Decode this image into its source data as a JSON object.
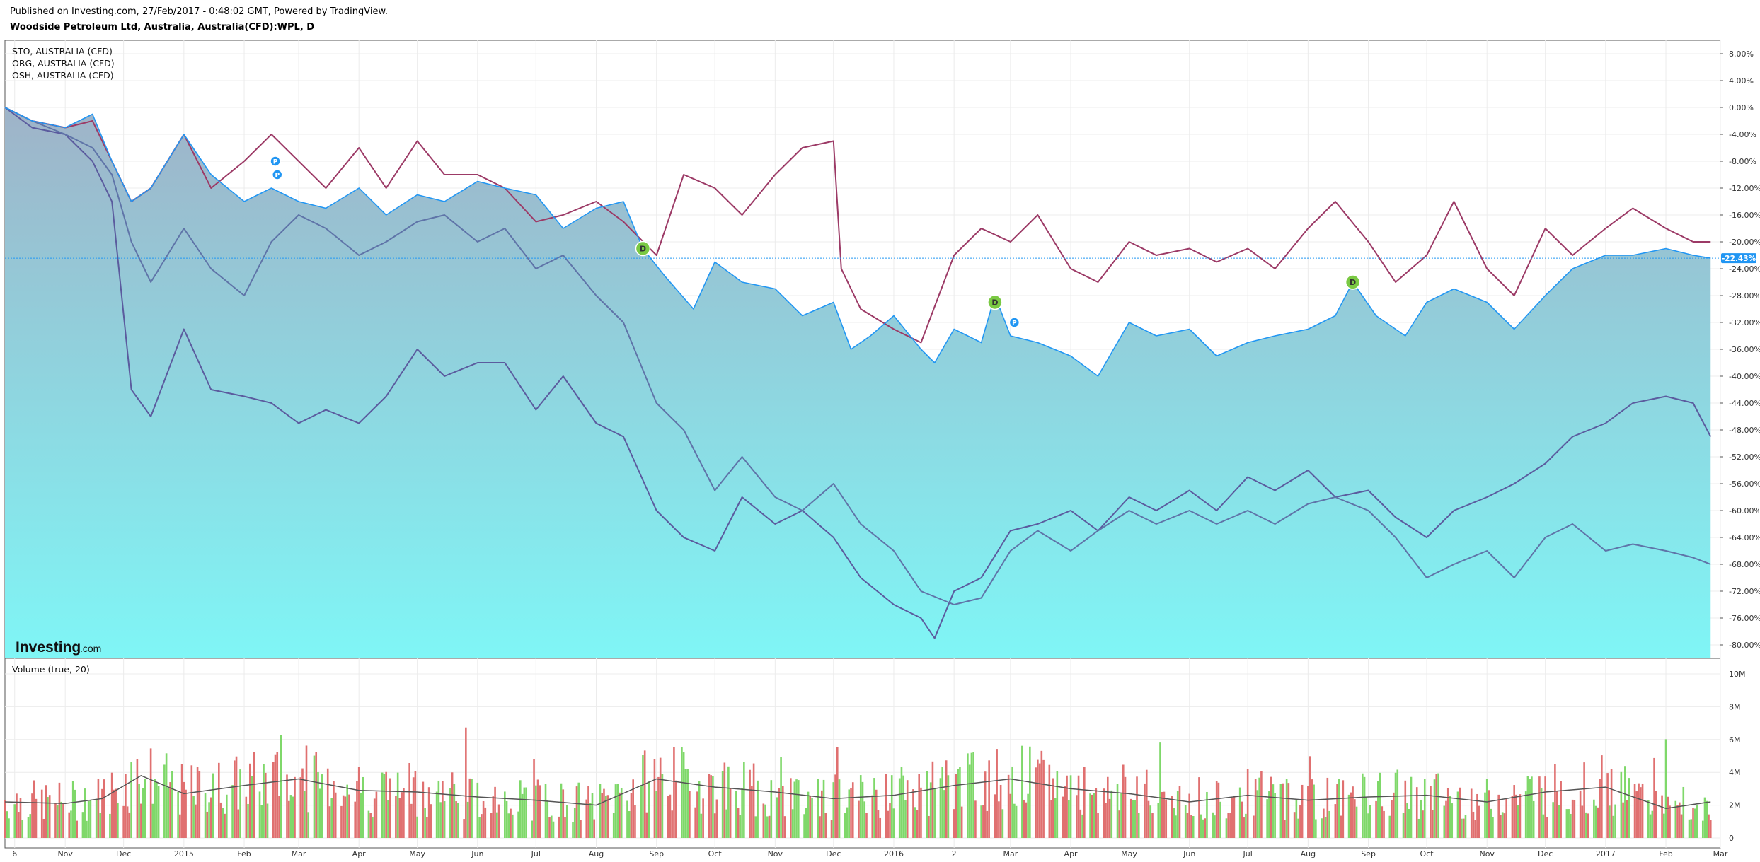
{
  "header": {
    "published": "Published on Investing.com, 27/Feb/2017 - 0:48:02 GMT, Powered by TradingView.",
    "title": "Woodside Petroleum Ltd, Australia, Australia(CFD):WPL, D"
  },
  "legend": [
    "STO, AUSTRALIA (CFD)",
    "ORG, AUSTRALIA (CFD)",
    "OSH, AUSTRALIA (CFD)"
  ],
  "volume_label": "Volume (true, 20)",
  "watermark": {
    "brand": "Investing",
    "suffix": ".com"
  },
  "last_value_tag": "-22.43%",
  "markers": [
    {
      "letter": "P",
      "type": "P",
      "x": "2015-02-17",
      "y": -8
    },
    {
      "letter": "P",
      "type": "P",
      "x": "2015-02-18",
      "y": -10
    },
    {
      "letter": "D",
      "type": "D",
      "x": "2015-08-25",
      "y": -21
    },
    {
      "letter": "D",
      "type": "D",
      "x": "2016-02-22",
      "y": -29
    },
    {
      "letter": "P",
      "type": "P",
      "x": "2016-03-03",
      "y": -32
    },
    {
      "letter": "D",
      "type": "D",
      "x": "2016-08-24",
      "y": -26
    }
  ],
  "colors": {
    "main_line": "#2196f3",
    "area_top": "#9fb3c8",
    "area_bottom": "#7ff6f6",
    "sto": "#5b5b9e",
    "org": "#9c3a66",
    "osh": "#5f74a8",
    "vol_up": "#7fd86a",
    "vol_down": "#e07070",
    "vol_ma": "#555555",
    "tag_bg": "#2196f3",
    "marker_d": "#7ac943",
    "marker_p": "#2196f3"
  },
  "chart_data": [
    {
      "type": "area",
      "name": "Woodside Petroleum Ltd, Australia, Australia(CFD):WPL, D",
      "y_unit": "%",
      "y_ticks": [
        "8.00%",
        "4.00%",
        "0.00%",
        "-4.00%",
        "-8.00%",
        "-12.00%",
        "-16.00%",
        "-20.00%",
        "-24.00%",
        "-28.00%",
        "-32.00%",
        "-36.00%",
        "-40.00%",
        "-44.00%",
        "-48.00%",
        "-52.00%",
        "-56.00%",
        "-60.00%",
        "-64.00%",
        "-68.00%",
        "-72.00%",
        "-76.00%",
        "-80.00%"
      ],
      "ylim": [
        -82,
        10
      ],
      "x_ticks": [
        {
          "label": "6",
          "date": "2014-10-06"
        },
        {
          "label": "Nov",
          "date": "2014-11-01"
        },
        {
          "label": "Dec",
          "date": "2014-12-01"
        },
        {
          "label": "2015",
          "date": "2015-01-01"
        },
        {
          "label": "Feb",
          "date": "2015-02-01"
        },
        {
          "label": "Mar",
          "date": "2015-03-01"
        },
        {
          "label": "Apr",
          "date": "2015-04-01"
        },
        {
          "label": "May",
          "date": "2015-05-01"
        },
        {
          "label": "Jun",
          "date": "2015-06-01"
        },
        {
          "label": "Jul",
          "date": "2015-07-01"
        },
        {
          "label": "Aug",
          "date": "2015-08-01"
        },
        {
          "label": "Sep",
          "date": "2015-09-01"
        },
        {
          "label": "Oct",
          "date": "2015-10-01"
        },
        {
          "label": "Nov",
          "date": "2015-11-01"
        },
        {
          "label": "Dec",
          "date": "2015-12-01"
        },
        {
          "label": "2016",
          "date": "2016-01-01"
        },
        {
          "label": "2",
          "date": "2016-02-01"
        },
        {
          "label": "Mar",
          "date": "2016-03-01"
        },
        {
          "label": "Apr",
          "date": "2016-04-01"
        },
        {
          "label": "May",
          "date": "2016-05-01"
        },
        {
          "label": "Jun",
          "date": "2016-06-01"
        },
        {
          "label": "Jul",
          "date": "2016-07-01"
        },
        {
          "label": "Aug",
          "date": "2016-08-01"
        },
        {
          "label": "Sep",
          "date": "2016-09-01"
        },
        {
          "label": "Oct",
          "date": "2016-10-01"
        },
        {
          "label": "Nov",
          "date": "2016-11-01"
        },
        {
          "label": "Dec",
          "date": "2016-12-01"
        },
        {
          "label": "2017",
          "date": "2017-01-01"
        },
        {
          "label": "Feb",
          "date": "2017-02-01"
        },
        {
          "label": "Mar",
          "date": "2017-03-01"
        }
      ],
      "xlim": [
        "2014-10-01",
        "2017-03-01"
      ],
      "grid": true,
      "legend_position": "top-left",
      "series": [
        {
          "name": "Woodside Petroleum Ltd, Australia, Australia(CFD):WPL, D",
          "x": [
            "2014-10-01",
            "2014-10-15",
            "2014-11-01",
            "2014-11-15",
            "2014-11-25",
            "2014-12-05",
            "2014-12-15",
            "2015-01-01",
            "2015-01-15",
            "2015-02-01",
            "2015-02-15",
            "2015-03-01",
            "2015-03-15",
            "2015-04-01",
            "2015-04-15",
            "2015-05-01",
            "2015-05-15",
            "2015-06-01",
            "2015-06-15",
            "2015-07-01",
            "2015-07-15",
            "2015-08-01",
            "2015-08-15",
            "2015-08-25",
            "2015-09-05",
            "2015-09-20",
            "2015-10-01",
            "2015-10-15",
            "2015-11-01",
            "2015-11-15",
            "2015-12-01",
            "2015-12-10",
            "2015-12-20",
            "2016-01-01",
            "2016-01-15",
            "2016-01-22",
            "2016-02-01",
            "2016-02-15",
            "2016-02-22",
            "2016-03-01",
            "2016-03-15",
            "2016-04-01",
            "2016-04-15",
            "2016-05-01",
            "2016-05-15",
            "2016-06-01",
            "2016-06-15",
            "2016-07-01",
            "2016-07-15",
            "2016-08-01",
            "2016-08-15",
            "2016-08-24",
            "2016-09-05",
            "2016-09-20",
            "2016-10-01",
            "2016-10-15",
            "2016-11-01",
            "2016-11-15",
            "2016-12-01",
            "2016-12-15",
            "2017-01-01",
            "2017-01-15",
            "2017-02-01",
            "2017-02-15",
            "2017-02-24"
          ],
          "y": [
            0,
            -2,
            -3,
            -1,
            -8,
            -14,
            -12,
            -4,
            -10,
            -14,
            -12,
            -14,
            -15,
            -12,
            -16,
            -13,
            -14,
            -11,
            -12,
            -13,
            -18,
            -15,
            -14,
            -21,
            -25,
            -30,
            -23,
            -26,
            -27,
            -31,
            -29,
            -36,
            -34,
            -31,
            -36,
            -38,
            -33,
            -35,
            -28,
            -34,
            -35,
            -37,
            -40,
            -32,
            -34,
            -33,
            -37,
            -35,
            -34,
            -33,
            -31,
            -26,
            -31,
            -34,
            -29,
            -27,
            -29,
            -33,
            -28,
            -24,
            -22,
            -22,
            -21,
            -22,
            -22.43
          ]
        },
        {
          "name": "STO, AUSTRALIA (CFD)",
          "x": [
            "2014-10-01",
            "2014-10-15",
            "2014-11-01",
            "2014-11-15",
            "2014-11-25",
            "2014-12-05",
            "2014-12-15",
            "2015-01-01",
            "2015-01-15",
            "2015-02-01",
            "2015-02-15",
            "2015-03-01",
            "2015-03-15",
            "2015-04-01",
            "2015-04-15",
            "2015-05-01",
            "2015-05-15",
            "2015-06-01",
            "2015-06-15",
            "2015-07-01",
            "2015-07-15",
            "2015-08-01",
            "2015-08-15",
            "2015-09-01",
            "2015-09-15",
            "2015-10-01",
            "2015-10-15",
            "2015-11-01",
            "2015-11-15",
            "2015-12-01",
            "2015-12-15",
            "2016-01-01",
            "2016-01-15",
            "2016-01-22",
            "2016-02-01",
            "2016-02-15",
            "2016-03-01",
            "2016-03-15",
            "2016-04-01",
            "2016-04-15",
            "2016-05-01",
            "2016-05-15",
            "2016-06-01",
            "2016-06-15",
            "2016-07-01",
            "2016-07-15",
            "2016-08-01",
            "2016-08-15",
            "2016-09-01",
            "2016-09-15",
            "2016-10-01",
            "2016-10-15",
            "2016-11-01",
            "2016-11-15",
            "2016-12-01",
            "2016-12-15",
            "2017-01-01",
            "2017-01-15",
            "2017-02-01",
            "2017-02-15",
            "2017-02-24"
          ],
          "y": [
            0,
            -3,
            -4,
            -8,
            -14,
            -42,
            -46,
            -33,
            -42,
            -43,
            -44,
            -47,
            -45,
            -47,
            -43,
            -36,
            -40,
            -38,
            -38,
            -45,
            -40,
            -47,
            -49,
            -60,
            -64,
            -66,
            -58,
            -62,
            -60,
            -64,
            -70,
            -74,
            -76,
            -79,
            -72,
            -70,
            -63,
            -62,
            -60,
            -63,
            -58,
            -60,
            -57,
            -60,
            -55,
            -57,
            -54,
            -58,
            -57,
            -61,
            -64,
            -60,
            -58,
            -56,
            -53,
            -49,
            -47,
            -44,
            -43,
            -44,
            -49
          ]
        },
        {
          "name": "ORG, AUSTRALIA (CFD)",
          "x": [
            "2014-10-01",
            "2014-10-15",
            "2014-11-01",
            "2014-11-15",
            "2014-11-25",
            "2014-12-05",
            "2014-12-15",
            "2015-01-01",
            "2015-01-15",
            "2015-02-01",
            "2015-02-15",
            "2015-03-01",
            "2015-03-15",
            "2015-04-01",
            "2015-04-15",
            "2015-05-01",
            "2015-05-15",
            "2015-06-01",
            "2015-06-15",
            "2015-07-01",
            "2015-07-15",
            "2015-08-01",
            "2015-08-15",
            "2015-09-01",
            "2015-09-15",
            "2015-10-01",
            "2015-10-15",
            "2015-11-01",
            "2015-11-15",
            "2015-12-01",
            "2015-12-05",
            "2015-12-15",
            "2016-01-01",
            "2016-01-15",
            "2016-02-01",
            "2016-02-15",
            "2016-03-01",
            "2016-03-15",
            "2016-04-01",
            "2016-04-15",
            "2016-05-01",
            "2016-05-15",
            "2016-06-01",
            "2016-06-15",
            "2016-07-01",
            "2016-07-15",
            "2016-08-01",
            "2016-08-15",
            "2016-09-01",
            "2016-09-15",
            "2016-10-01",
            "2016-10-15",
            "2016-11-01",
            "2016-11-15",
            "2016-12-01",
            "2016-12-15",
            "2017-01-01",
            "2017-01-15",
            "2017-02-01",
            "2017-02-15",
            "2017-02-24"
          ],
          "y": [
            0,
            -2,
            -3,
            -2,
            -8,
            -14,
            -12,
            -4,
            -12,
            -8,
            -4,
            -8,
            -12,
            -6,
            -12,
            -5,
            -10,
            -10,
            -12,
            -17,
            -16,
            -14,
            -17,
            -22,
            -10,
            -12,
            -16,
            -10,
            -6,
            -5,
            -24,
            -30,
            -33,
            -35,
            -22,
            -18,
            -20,
            -16,
            -24,
            -26,
            -20,
            -22,
            -21,
            -23,
            -21,
            -24,
            -18,
            -14,
            -20,
            -26,
            -22,
            -14,
            -24,
            -28,
            -18,
            -22,
            -18,
            -15,
            -18,
            -20,
            -20
          ]
        },
        {
          "name": "OSH, AUSTRALIA (CFD)",
          "x": [
            "2014-10-01",
            "2014-10-15",
            "2014-11-01",
            "2014-11-15",
            "2014-11-25",
            "2014-12-05",
            "2014-12-15",
            "2015-01-01",
            "2015-01-15",
            "2015-02-01",
            "2015-02-15",
            "2015-03-01",
            "2015-03-15",
            "2015-04-01",
            "2015-04-15",
            "2015-05-01",
            "2015-05-15",
            "2015-06-01",
            "2015-06-15",
            "2015-07-01",
            "2015-07-15",
            "2015-08-01",
            "2015-08-15",
            "2015-09-01",
            "2015-09-15",
            "2015-10-01",
            "2015-10-15",
            "2015-11-01",
            "2015-11-15",
            "2015-12-01",
            "2015-12-15",
            "2016-01-01",
            "2016-01-15",
            "2016-02-01",
            "2016-02-15",
            "2016-03-01",
            "2016-03-15",
            "2016-04-01",
            "2016-04-15",
            "2016-05-01",
            "2016-05-15",
            "2016-06-01",
            "2016-06-15",
            "2016-07-01",
            "2016-07-15",
            "2016-08-01",
            "2016-08-15",
            "2016-09-01",
            "2016-09-15",
            "2016-10-01",
            "2016-10-15",
            "2016-11-01",
            "2016-11-15",
            "2016-12-01",
            "2016-12-15",
            "2017-01-01",
            "2017-01-15",
            "2017-02-01",
            "2017-02-15",
            "2017-02-24"
          ],
          "y": [
            0,
            -2,
            -4,
            -6,
            -10,
            -20,
            -26,
            -18,
            -24,
            -28,
            -20,
            -16,
            -18,
            -22,
            -20,
            -17,
            -16,
            -20,
            -18,
            -24,
            -22,
            -28,
            -32,
            -44,
            -48,
            -57,
            -52,
            -58,
            -60,
            -56,
            -62,
            -66,
            -72,
            -74,
            -73,
            -66,
            -63,
            -66,
            -63,
            -60,
            -62,
            -60,
            -62,
            -60,
            -62,
            -59,
            -58,
            -60,
            -64,
            -70,
            -68,
            -66,
            -70,
            -64,
            -62,
            -66,
            -65,
            -66,
            -67,
            -68
          ]
        }
      ]
    },
    {
      "type": "bar",
      "name": "Volume (true, 20)",
      "y_ticks": [
        "10M",
        "8M",
        "6M",
        "4M",
        "2M",
        "0"
      ],
      "ylim": [
        0,
        10
      ],
      "y_unit": "M",
      "series_ma_x": [
        "2014-10-01",
        "2014-11-01",
        "2014-11-20",
        "2014-12-10",
        "2015-01-01",
        "2015-02-01",
        "2015-03-01",
        "2015-04-01",
        "2015-05-01",
        "2015-06-01",
        "2015-07-01",
        "2015-08-01",
        "2015-09-01",
        "2015-10-01",
        "2015-11-01",
        "2015-12-01",
        "2016-01-01",
        "2016-02-01",
        "2016-03-01",
        "2016-04-01",
        "2016-05-01",
        "2016-06-01",
        "2016-07-01",
        "2016-08-01",
        "2016-09-01",
        "2016-10-01",
        "2016-11-01",
        "2016-12-01",
        "2017-01-01",
        "2017-02-01",
        "2017-02-24"
      ],
      "series_ma_y": [
        2.2,
        2.1,
        2.4,
        3.8,
        2.7,
        3.2,
        3.6,
        2.9,
        2.8,
        2.5,
        2.3,
        2.0,
        3.6,
        3.1,
        2.8,
        2.4,
        2.6,
        3.2,
        3.6,
        3.0,
        2.7,
        2.2,
        2.6,
        2.3,
        2.5,
        2.6,
        2.2,
        2.8,
        3.1,
        1.8,
        2.2
      ]
    }
  ]
}
